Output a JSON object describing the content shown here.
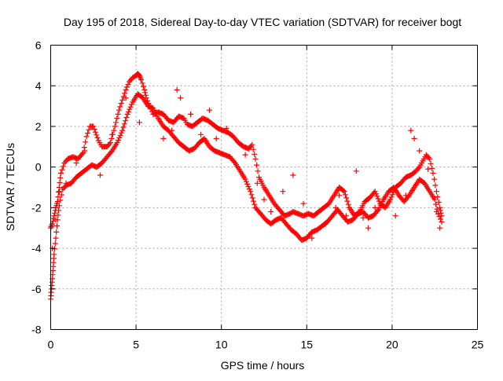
{
  "chart_data": {
    "type": "scatter",
    "title": "Day 195 of 2018, Sidereal Day-to-day VTEC variation (SDTVAR) for receiver bogt",
    "xlabel": "GPS time / hours",
    "ylabel": "SDTVAR / TECUs",
    "xlim": [
      0,
      25
    ],
    "ylim": [
      -8,
      6
    ],
    "xticks": [
      "0",
      "5",
      "10",
      "15",
      "20",
      "25"
    ],
    "yticks": [
      "-8",
      "-6",
      "-4",
      "-2",
      "0",
      "2",
      "4",
      "6"
    ],
    "grid": true,
    "marker": "+",
    "color": "#ff0000",
    "series": [
      {
        "name": "upper track",
        "x": [
          0.0,
          0.1,
          0.2,
          0.3,
          0.4,
          0.5,
          0.6,
          0.8,
          1.0,
          1.3,
          1.6,
          1.9,
          2.1,
          2.3,
          2.5,
          2.8,
          3.0,
          3.3,
          3.5,
          3.7,
          4.0,
          4.2,
          4.4,
          4.6,
          4.8,
          5.0,
          5.1,
          5.2,
          5.3,
          5.5,
          5.6,
          5.8,
          6.0,
          6.3,
          6.6,
          6.9,
          7.2,
          7.5,
          7.8,
          8.0,
          8.3,
          8.6,
          8.9,
          9.2,
          9.5,
          9.8,
          10.1,
          10.4,
          10.7,
          11.0,
          11.3,
          11.6,
          11.8,
          12.0,
          12.2,
          12.5,
          12.8,
          13.1,
          13.4,
          13.7,
          14.0,
          14.2,
          14.5,
          14.8,
          15.1,
          15.4,
          15.7,
          16.0,
          16.3,
          16.6,
          16.9,
          17.2,
          17.5,
          17.8,
          18.1,
          18.4,
          18.7,
          19.0,
          19.3,
          19.6,
          19.9,
          20.2,
          20.5,
          20.8,
          21.1,
          21.4,
          21.6,
          21.8,
          22.0,
          22.2,
          22.4,
          22.6,
          22.8,
          22.9
        ],
        "y": [
          -3.0,
          -2.8,
          -2.4,
          -2.0,
          -1.7,
          -1.0,
          -0.3,
          0.2,
          0.4,
          0.5,
          0.4,
          0.7,
          1.5,
          2.0,
          2.0,
          1.3,
          1.0,
          1.0,
          1.2,
          1.8,
          2.8,
          3.3,
          3.8,
          4.2,
          4.4,
          4.5,
          4.6,
          4.5,
          4.3,
          3.8,
          3.4,
          3.0,
          2.6,
          2.7,
          2.6,
          2.3,
          2.2,
          2.5,
          2.4,
          2.1,
          2.0,
          2.2,
          2.4,
          2.3,
          2.1,
          1.9,
          1.8,
          1.7,
          1.5,
          1.2,
          1.0,
          0.9,
          1.1,
          0.4,
          -0.5,
          -1.0,
          -1.4,
          -1.8,
          -2.1,
          -2.4,
          -2.3,
          -2.2,
          -2.3,
          -2.4,
          -2.3,
          -2.4,
          -2.2,
          -2.0,
          -1.8,
          -1.4,
          -1.0,
          -1.2,
          -2.0,
          -2.4,
          -2.2,
          -1.7,
          -1.5,
          -1.2,
          -1.8,
          -2.0,
          -1.6,
          -1.0,
          -0.8,
          -0.5,
          -0.4,
          -0.2,
          0.0,
          0.3,
          0.6,
          0.4,
          -0.3,
          -1.2,
          -2.0,
          -2.4
        ]
      },
      {
        "name": "lower track",
        "x": [
          0.0,
          0.05,
          0.1,
          0.15,
          0.2,
          0.3,
          0.4,
          0.5,
          0.7,
          0.9,
          1.2,
          1.5,
          1.8,
          2.1,
          2.4,
          2.7,
          3.0,
          3.3,
          3.6,
          3.9,
          4.2,
          4.5,
          4.8,
          5.1,
          5.4,
          5.7,
          6.0,
          6.3,
          6.6,
          6.9,
          7.2,
          7.5,
          7.8,
          8.1,
          8.4,
          8.7,
          9.0,
          9.3,
          9.6,
          9.9,
          10.2,
          10.5,
          10.8,
          11.1,
          11.4,
          11.7,
          12.0,
          12.3,
          12.6,
          12.9,
          13.2,
          13.5,
          13.8,
          14.1,
          14.4,
          14.7,
          15.0,
          15.3,
          15.6,
          15.9,
          16.2,
          16.5,
          16.8,
          17.1,
          17.4,
          17.7,
          18.0,
          18.3,
          18.6,
          18.9,
          19.2,
          19.5,
          19.8,
          20.1,
          20.4,
          20.7,
          21.0,
          21.3,
          21.6,
          21.9,
          22.2,
          22.5,
          22.7,
          22.9
        ],
        "y": [
          -6.5,
          -6.0,
          -5.5,
          -4.9,
          -4.3,
          -3.5,
          -2.6,
          -1.9,
          -1.1,
          -0.9,
          -0.8,
          -0.5,
          -0.3,
          -0.1,
          0.1,
          0.0,
          0.2,
          0.5,
          0.8,
          1.2,
          1.8,
          2.6,
          3.2,
          3.6,
          3.4,
          3.0,
          2.9,
          2.4,
          2.0,
          1.8,
          1.5,
          1.2,
          1.0,
          0.8,
          0.9,
          1.2,
          1.4,
          1.0,
          0.8,
          0.7,
          0.6,
          0.5,
          0.2,
          -0.2,
          -0.6,
          -1.2,
          -2.0,
          -2.3,
          -2.6,
          -2.8,
          -2.6,
          -2.5,
          -2.8,
          -3.1,
          -3.3,
          -3.6,
          -3.5,
          -3.2,
          -3.1,
          -2.9,
          -2.7,
          -2.4,
          -2.1,
          -2.4,
          -2.7,
          -2.6,
          -2.3,
          -2.2,
          -2.5,
          -2.4,
          -2.1,
          -1.6,
          -1.2,
          -1.0,
          -1.4,
          -1.7,
          -1.4,
          -1.0,
          -0.6,
          -0.8,
          -1.2,
          -1.6,
          -2.3,
          -2.7
        ]
      },
      {
        "name": "scattered points",
        "x": [
          0.1,
          0.3,
          0.5,
          0.9,
          1.5,
          2.0,
          2.9,
          3.6,
          4.4,
          5.2,
          6.6,
          7.1,
          7.4,
          7.6,
          8.2,
          8.8,
          9.3,
          9.7,
          10.3,
          11.4,
          12.1,
          12.5,
          12.9,
          13.6,
          14.2,
          14.8,
          15.3,
          16.1,
          16.7,
          16.9,
          17.3,
          17.9,
          18.3,
          18.6,
          19.0,
          19.5,
          20.2,
          20.8,
          21.1,
          21.3,
          21.6,
          22.1,
          22.6,
          22.8
        ],
        "y": [
          -4.0,
          -2.6,
          -1.2,
          -0.8,
          0.2,
          0.8,
          -0.4,
          1.6,
          3.4,
          2.2,
          1.4,
          1.8,
          3.8,
          3.4,
          2.6,
          1.6,
          2.8,
          1.4,
          1.9,
          0.6,
          -0.8,
          -1.6,
          -2.2,
          -1.2,
          -0.4,
          -1.8,
          -3.5,
          -2.8,
          -2.0,
          -1.4,
          -2.4,
          -0.2,
          -2.5,
          -3.0,
          -2.0,
          -1.6,
          -2.4,
          -1.4,
          1.8,
          1.4,
          0.8,
          -0.1,
          -2.2,
          -3.0
        ]
      }
    ]
  }
}
